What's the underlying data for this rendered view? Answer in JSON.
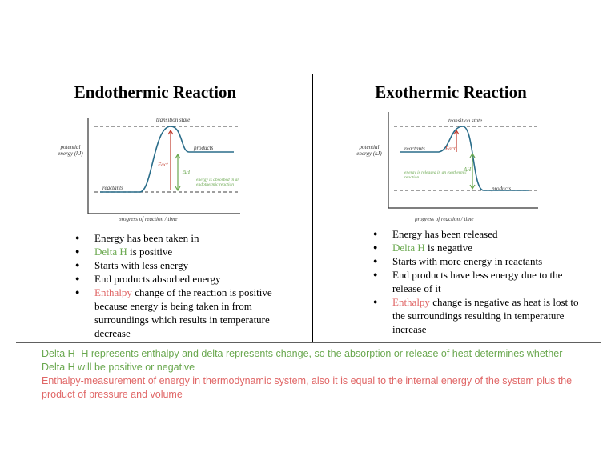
{
  "panels": [
    {
      "title": "Endothermic Reaction",
      "diagram": {
        "y_axis_label": "potential energy (kJ)",
        "x_axis_label": "progress of reaction / time",
        "peak_label": "transition state",
        "products_label": "products",
        "reactants_label": "reactants",
        "activation_label": "Eact",
        "delta_label": "ΔH",
        "note": "energy is absorbed in an endothermic reaction"
      },
      "bullets": [
        {
          "text": "Energy has been taken in"
        },
        {
          "term": "Delta H",
          "term_color": "#6aa84f",
          "text": "is positive"
        },
        {
          "text": "Starts with less energy"
        },
        {
          "text": "End products absorbed energy"
        },
        {
          "term": "Enthalpy",
          "term_color": "#e06666",
          "text": "change of the reaction is positive because energy is being taken in from surroundings which results in temperature decrease"
        }
      ]
    },
    {
      "title": "Exothermic Reaction",
      "diagram": {
        "y_axis_label": "potential energy (kJ)",
        "x_axis_label": "progress of reaction / time",
        "peak_label": "transition state",
        "products_label": "products",
        "reactants_label": "reactants",
        "activation_label": "Eact",
        "delta_label": "ΔH",
        "note": "energy is released in an exothermic reaction"
      },
      "bullets": [
        {
          "text": "Energy has been released"
        },
        {
          "term": "Delta H",
          "term_color": "#6aa84f",
          "text": "is negative"
        },
        {
          "text": "Starts with more energy in reactants"
        },
        {
          "text": "End products have less energy due to the release of it"
        },
        {
          "term": "Enthalpy",
          "term_color": "#e06666",
          "text": "change is negative as heat is lost to the surroundings resulting in temperature increase"
        }
      ]
    }
  ],
  "notes": [
    {
      "text": "Delta H- H represents enthalpy and delta represents change, so the absorption or release of heat determines whether Delta H will be positive or negative",
      "color": "#6aa84f"
    },
    {
      "text": "Enthalpy-measurement of energy in thermodynamic system, also it is equal to the internal energy of the system plus the product of pressure and volume",
      "color": "#e06666"
    }
  ]
}
